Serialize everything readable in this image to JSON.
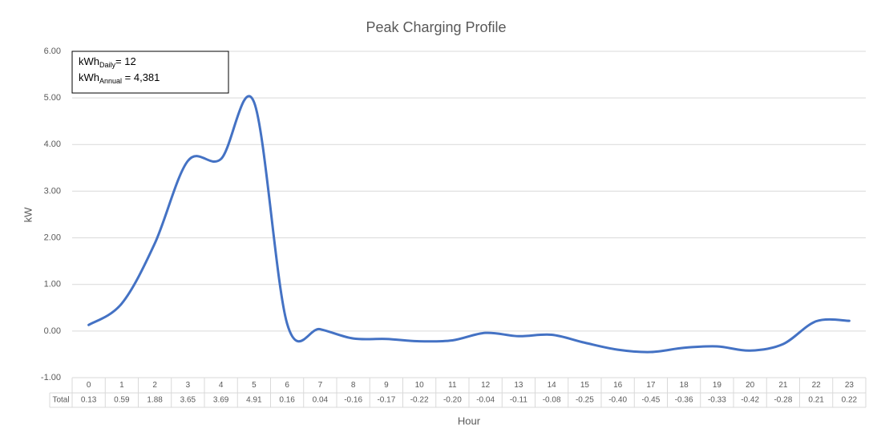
{
  "chart_data": {
    "type": "line",
    "title": "Peak Charging Profile",
    "x_label": "Hour",
    "y_label": "kW",
    "table_row_label": "Total",
    "annotation": [
      {
        "base": "kWh",
        "sub": "Daily",
        "text": "= 12"
      },
      {
        "base": "kWh",
        "sub": "Annual",
        "text": " = 4,381"
      }
    ],
    "categories": [
      "0",
      "1",
      "2",
      "3",
      "4",
      "5",
      "6",
      "7",
      "8",
      "9",
      "10",
      "11",
      "12",
      "13",
      "14",
      "15",
      "16",
      "17",
      "18",
      "19",
      "20",
      "21",
      "22",
      "23"
    ],
    "series": [
      {
        "name": "Total",
        "color": "#4472c4",
        "values": [
          0.13,
          0.59,
          1.88,
          3.65,
          3.69,
          4.91,
          0.16,
          0.04,
          -0.16,
          -0.17,
          -0.22,
          -0.2,
          -0.04,
          -0.11,
          -0.08,
          -0.25,
          -0.4,
          -0.45,
          -0.36,
          -0.33,
          -0.42,
          -0.28,
          0.21,
          0.22
        ],
        "value_labels": [
          "0.13",
          "0.59",
          "1.88",
          "3.65",
          "3.69",
          "4.91",
          "0.16",
          "0.04",
          "-0.16",
          "-0.17",
          "-0.22",
          "-0.20",
          "-0.04",
          "-0.11",
          "-0.08",
          "-0.25",
          "-0.40",
          "-0.45",
          "-0.36",
          "-0.33",
          "-0.42",
          "-0.28",
          "0.21",
          "0.22"
        ]
      }
    ],
    "ylim": [
      -1,
      6
    ],
    "yticks": [
      {
        "value": -1,
        "label": "-1.00"
      },
      {
        "value": 0,
        "label": "0.00"
      },
      {
        "value": 1,
        "label": "1.00"
      },
      {
        "value": 2,
        "label": "2.00"
      },
      {
        "value": 3,
        "label": "3.00"
      },
      {
        "value": 4,
        "label": "4.00"
      },
      {
        "value": 5,
        "label": "5.00"
      },
      {
        "value": 6,
        "label": "6.00"
      }
    ],
    "grid": true
  }
}
